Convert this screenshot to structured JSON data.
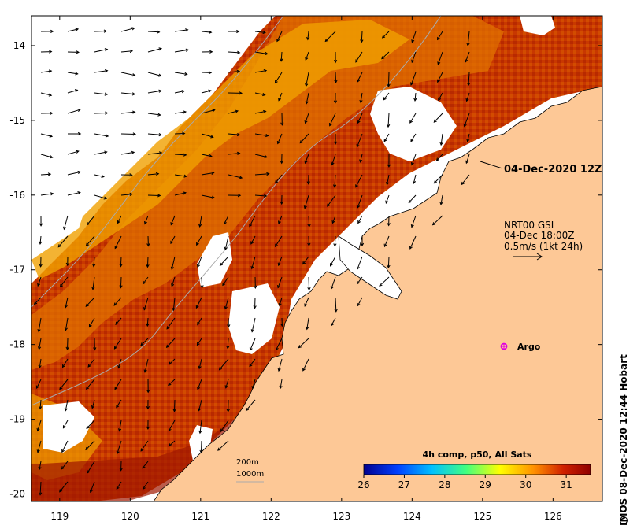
{
  "map": {
    "x_ticks": [
      "119",
      "120",
      "121",
      "122",
      "123",
      "124",
      "125",
      "126"
    ],
    "y_ticks": [
      "-14",
      "-15",
      "-16",
      "-17",
      "-18",
      "-19",
      "-20"
    ],
    "lon_range": [
      118.6,
      126.7
    ],
    "lat_range": [
      -20.1,
      -13.6
    ]
  },
  "annotations": {
    "snapshot_date": "04-Dec-2020 12Z",
    "current_product": "NRT00 GSL",
    "current_time": "04-Dec 18:00Z",
    "current_scale": "0.5m/s (1kt 24h)",
    "argo_label": "Argo"
  },
  "scale_bar": {
    "depth_200": "200m",
    "depth_1000": "1000m"
  },
  "colorbar": {
    "title": "4h comp, p50, All Sats",
    "ticks": [
      "26",
      "27",
      "28",
      "29",
      "30",
      "31"
    ],
    "min": 26,
    "max": 31.6,
    "colors": [
      "#00008f",
      "#0040ff",
      "#00c0ff",
      "#40ff80",
      "#ffff00",
      "#ff9000",
      "#d02000",
      "#8f0000"
    ]
  },
  "credit": "IMOS 08-Dec-2020 12:44 Hobart",
  "colors": {
    "land": "#fdc896",
    "sst_warm": "#c02a00",
    "sst_mid": "#e06a00",
    "sst_cool": "#f0a000",
    "cloud": "#ffffff",
    "argo": "#e000e0"
  }
}
